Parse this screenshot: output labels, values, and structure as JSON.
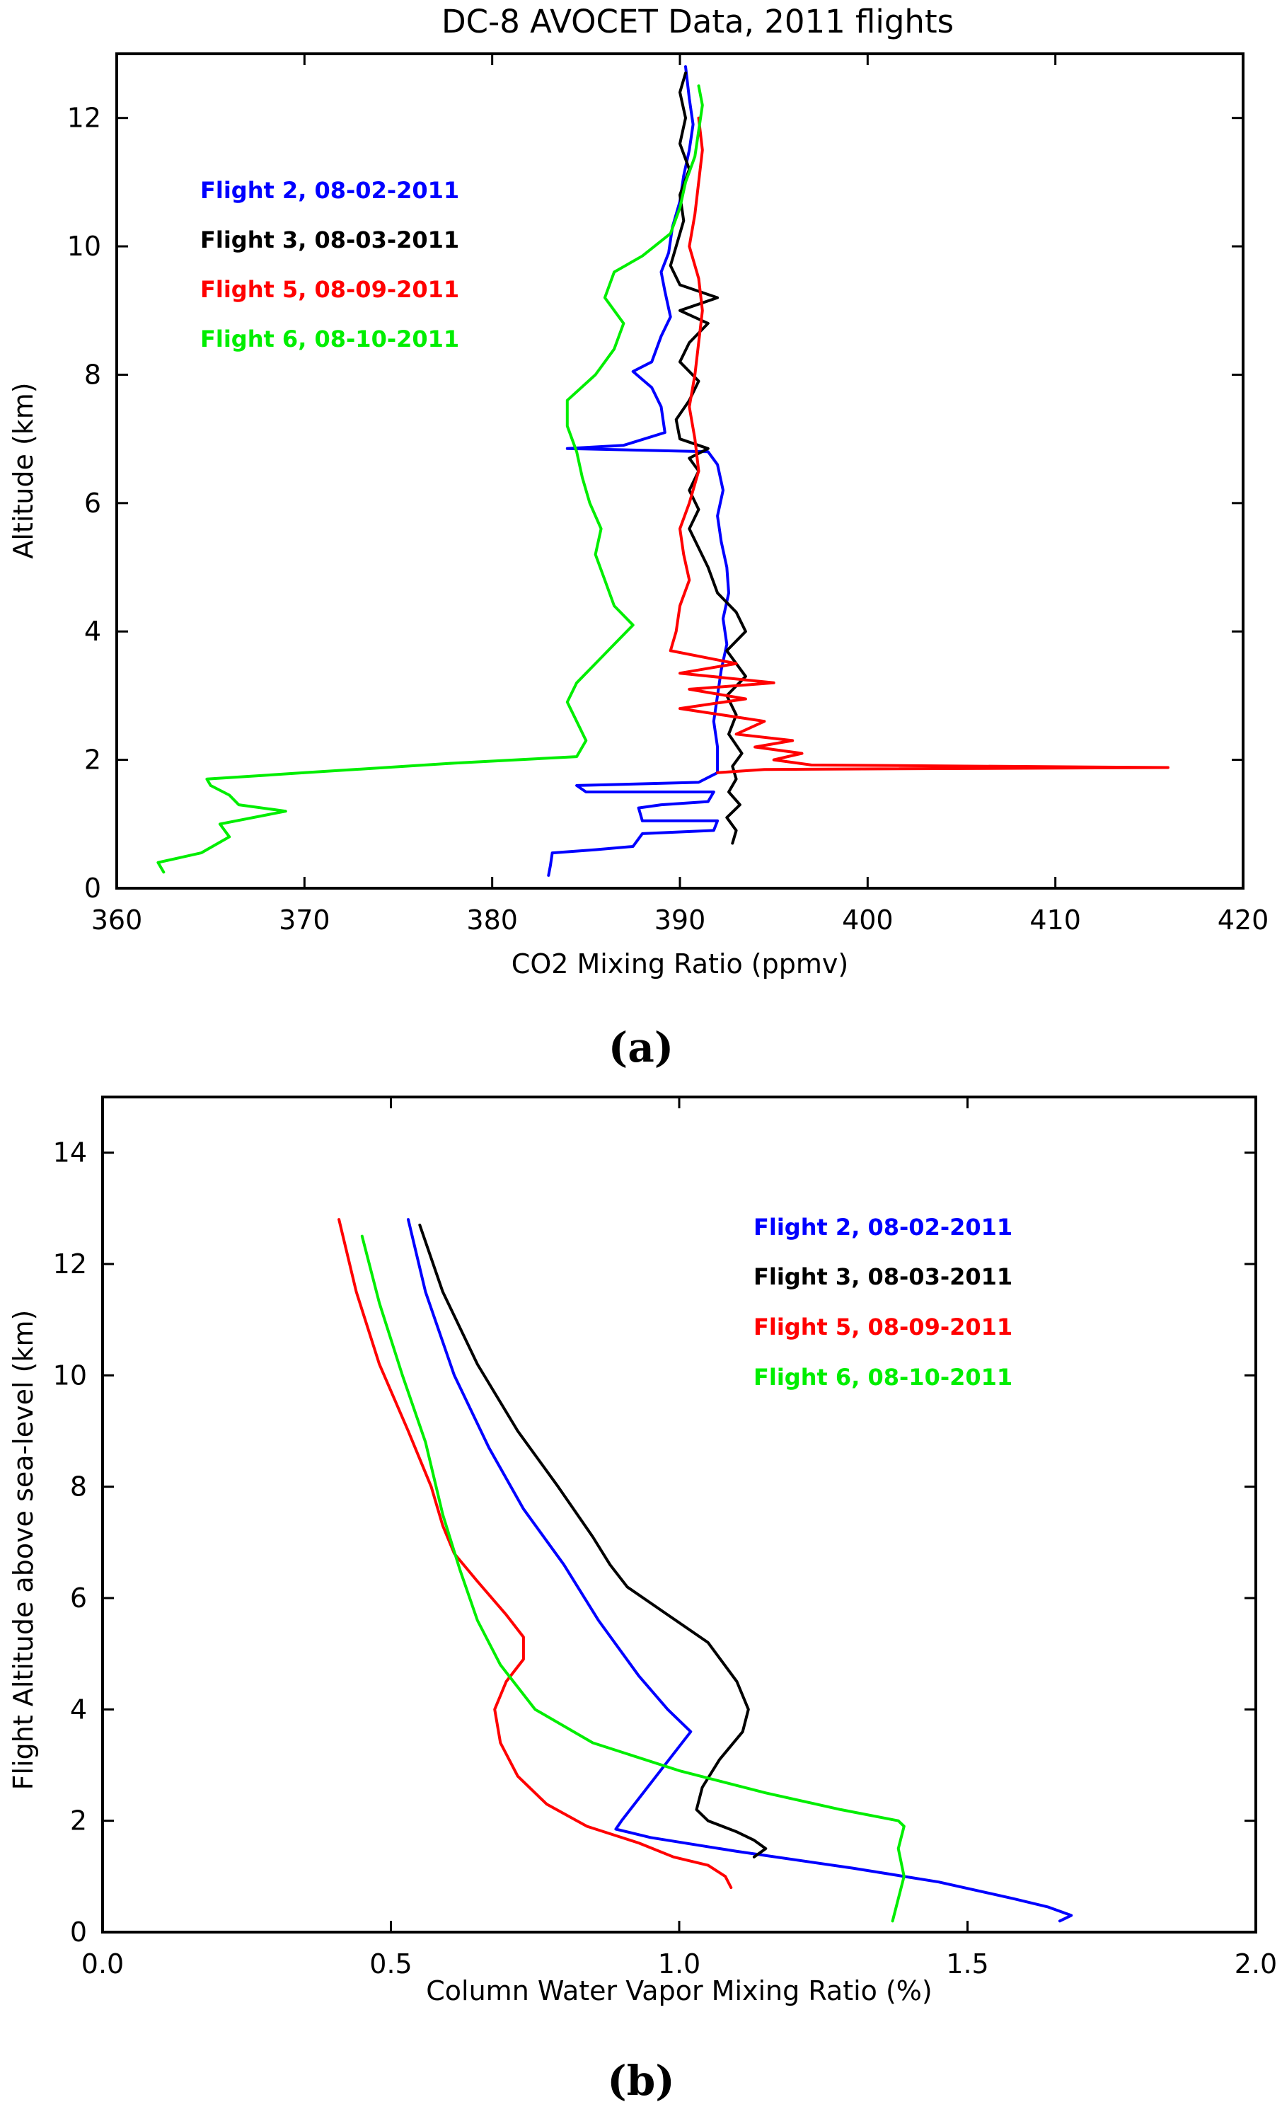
{
  "figure_labels": {
    "a": "(a)",
    "b": "(b)"
  },
  "chart_data": [
    {
      "type": "line",
      "title": "DC-8 AVOCET Data, 2011 flights",
      "xlabel": "CO2 Mixing Ratio (ppmv)",
      "ylabel": "Altitude (km)",
      "xlim": [
        360,
        420
      ],
      "ylim": [
        0,
        13
      ],
      "xticks": [
        360,
        370,
        380,
        390,
        400,
        410,
        420
      ],
      "yticks": [
        0,
        2,
        4,
        6,
        8,
        10,
        12
      ],
      "xticklabels": [
        "360",
        "370",
        "380",
        "390",
        "400",
        "410",
        "420"
      ],
      "yticklabels": [
        "0",
        "2",
        "4",
        "6",
        "8",
        "10",
        "12"
      ],
      "legend": "upper-left",
      "series": [
        {
          "name": "Flight 2, 08-02-2011",
          "color": "#0000ff",
          "points": [
            [
              383.0,
              0.2
            ],
            [
              383.1,
              0.35
            ],
            [
              383.2,
              0.55
            ],
            [
              385.5,
              0.6
            ],
            [
              387.5,
              0.65
            ],
            [
              388.0,
              0.85
            ],
            [
              391.8,
              0.9
            ],
            [
              392.0,
              1.05
            ],
            [
              388.0,
              1.05
            ],
            [
              387.8,
              1.25
            ],
            [
              389.0,
              1.3
            ],
            [
              391.5,
              1.35
            ],
            [
              391.8,
              1.5
            ],
            [
              385.0,
              1.5
            ],
            [
              384.5,
              1.6
            ],
            [
              391.0,
              1.65
            ],
            [
              392.0,
              1.8
            ],
            [
              392.0,
              2.2
            ],
            [
              391.8,
              2.6
            ],
            [
              392.0,
              3.0
            ],
            [
              392.2,
              3.4
            ],
            [
              392.5,
              3.8
            ],
            [
              392.3,
              4.2
            ],
            [
              392.6,
              4.6
            ],
            [
              392.5,
              5.0
            ],
            [
              392.2,
              5.4
            ],
            [
              392.0,
              5.8
            ],
            [
              392.3,
              6.2
            ],
            [
              392.0,
              6.6
            ],
            [
              391.5,
              6.8
            ],
            [
              384.0,
              6.85
            ],
            [
              387.0,
              6.9
            ],
            [
              389.2,
              7.1
            ],
            [
              389.0,
              7.5
            ],
            [
              388.5,
              7.8
            ],
            [
              387.5,
              8.05
            ],
            [
              388.5,
              8.2
            ],
            [
              389.0,
              8.6
            ],
            [
              389.5,
              8.9
            ],
            [
              389.2,
              9.3
            ],
            [
              389.0,
              9.6
            ],
            [
              389.4,
              9.9
            ],
            [
              389.6,
              10.3
            ],
            [
              390.0,
              10.7
            ],
            [
              390.2,
              11.1
            ],
            [
              390.5,
              11.5
            ],
            [
              390.7,
              11.9
            ],
            [
              390.5,
              12.3
            ],
            [
              390.3,
              12.8
            ]
          ]
        },
        {
          "name": "Flight 3, 08-03-2011",
          "color": "#000000",
          "points": [
            [
              392.8,
              0.7
            ],
            [
              393.0,
              0.9
            ],
            [
              392.5,
              1.1
            ],
            [
              393.2,
              1.3
            ],
            [
              392.6,
              1.5
            ],
            [
              393.0,
              1.7
            ],
            [
              392.8,
              1.9
            ],
            [
              393.3,
              2.1
            ],
            [
              392.6,
              2.4
            ],
            [
              393.0,
              2.7
            ],
            [
              392.5,
              3.0
            ],
            [
              393.5,
              3.3
            ],
            [
              392.5,
              3.7
            ],
            [
              393.5,
              4.0
            ],
            [
              393.0,
              4.3
            ],
            [
              392.0,
              4.6
            ],
            [
              391.5,
              5.0
            ],
            [
              391.0,
              5.3
            ],
            [
              390.5,
              5.6
            ],
            [
              391.0,
              5.9
            ],
            [
              390.5,
              6.2
            ],
            [
              391.0,
              6.5
            ],
            [
              390.5,
              6.7
            ],
            [
              391.5,
              6.85
            ],
            [
              390.0,
              7.0
            ],
            [
              389.8,
              7.3
            ],
            [
              390.5,
              7.6
            ],
            [
              391.0,
              7.9
            ],
            [
              390.0,
              8.2
            ],
            [
              390.5,
              8.5
            ],
            [
              391.5,
              8.8
            ],
            [
              390.0,
              9.0
            ],
            [
              392.0,
              9.2
            ],
            [
              390.0,
              9.4
            ],
            [
              389.5,
              9.7
            ],
            [
              389.8,
              10.0
            ],
            [
              390.2,
              10.4
            ],
            [
              390.0,
              10.8
            ],
            [
              390.5,
              11.2
            ],
            [
              390.0,
              11.6
            ],
            [
              390.3,
              12.0
            ],
            [
              390.0,
              12.4
            ],
            [
              390.3,
              12.7
            ]
          ]
        },
        {
          "name": "Flight 5, 08-09-2011",
          "color": "#ff0000",
          "points": [
            [
              392.0,
              1.8
            ],
            [
              394.5,
              1.85
            ],
            [
              416.0,
              1.88
            ],
            [
              397.0,
              1.92
            ],
            [
              395.0,
              2.0
            ],
            [
              396.5,
              2.1
            ],
            [
              394.0,
              2.2
            ],
            [
              396.0,
              2.3
            ],
            [
              393.0,
              2.4
            ],
            [
              394.5,
              2.6
            ],
            [
              390.0,
              2.8
            ],
            [
              393.5,
              2.95
            ],
            [
              390.5,
              3.1
            ],
            [
              395.0,
              3.2
            ],
            [
              390.0,
              3.35
            ],
            [
              393.0,
              3.5
            ],
            [
              389.5,
              3.7
            ],
            [
              389.8,
              4.0
            ],
            [
              390.0,
              4.4
            ],
            [
              390.5,
              4.8
            ],
            [
              390.2,
              5.2
            ],
            [
              390.0,
              5.6
            ],
            [
              390.5,
              6.0
            ],
            [
              391.0,
              6.5
            ],
            [
              390.8,
              7.0
            ],
            [
              390.5,
              7.5
            ],
            [
              390.8,
              8.0
            ],
            [
              391.0,
              8.5
            ],
            [
              391.2,
              9.0
            ],
            [
              391.0,
              9.5
            ],
            [
              390.5,
              10.0
            ],
            [
              390.8,
              10.5
            ],
            [
              391.0,
              11.0
            ],
            [
              391.2,
              11.5
            ],
            [
              391.0,
              12.0
            ]
          ]
        },
        {
          "name": "Flight 6, 08-10-2011",
          "color": "#00ee00",
          "points": [
            [
              362.5,
              0.25
            ],
            [
              362.2,
              0.4
            ],
            [
              364.5,
              0.55
            ],
            [
              366.0,
              0.8
            ],
            [
              365.5,
              1.0
            ],
            [
              369.0,
              1.2
            ],
            [
              366.5,
              1.3
            ],
            [
              366.0,
              1.45
            ],
            [
              365.0,
              1.6
            ],
            [
              364.8,
              1.7
            ],
            [
              370.0,
              1.8
            ],
            [
              378.0,
              1.95
            ],
            [
              384.5,
              2.05
            ],
            [
              385.0,
              2.3
            ],
            [
              384.5,
              2.6
            ],
            [
              384.0,
              2.9
            ],
            [
              384.5,
              3.2
            ],
            [
              385.5,
              3.5
            ],
            [
              386.5,
              3.8
            ],
            [
              387.5,
              4.1
            ],
            [
              386.5,
              4.4
            ],
            [
              386.0,
              4.8
            ],
            [
              385.5,
              5.2
            ],
            [
              385.8,
              5.6
            ],
            [
              385.2,
              6.0
            ],
            [
              384.8,
              6.4
            ],
            [
              384.5,
              6.8
            ],
            [
              384.0,
              7.2
            ],
            [
              384.0,
              7.6
            ],
            [
              385.5,
              8.0
            ],
            [
              386.5,
              8.4
            ],
            [
              387.0,
              8.8
            ],
            [
              386.0,
              9.2
            ],
            [
              386.5,
              9.6
            ],
            [
              388.0,
              9.85
            ],
            [
              389.5,
              10.2
            ],
            [
              390.0,
              10.6
            ],
            [
              390.3,
              11.0
            ],
            [
              390.8,
              11.4
            ],
            [
              391.0,
              11.8
            ],
            [
              391.2,
              12.2
            ],
            [
              391.0,
              12.5
            ]
          ]
        }
      ]
    },
    {
      "type": "line",
      "title": "",
      "xlabel": "Column Water Vapor Mixing Ratio (%)",
      "ylabel": "Flight Altitude above sea-level (km)",
      "xlim": [
        0.0,
        2.0
      ],
      "ylim": [
        0,
        15
      ],
      "xticks": [
        0.0,
        0.5,
        1.0,
        1.5,
        2.0
      ],
      "yticks": [
        0,
        2,
        4,
        6,
        8,
        10,
        12,
        14
      ],
      "xticklabels": [
        "0.0",
        "0.5",
        "1.0",
        "1.5",
        "2.0"
      ],
      "yticklabels": [
        "0",
        "2",
        "4",
        "6",
        "8",
        "10",
        "12",
        "14"
      ],
      "legend": "upper-right",
      "series": [
        {
          "name": "Flight 2, 08-02-2011",
          "color": "#0000ff",
          "points": [
            [
              0.53,
              12.8
            ],
            [
              0.56,
              11.5
            ],
            [
              0.61,
              10.0
            ],
            [
              0.67,
              8.7
            ],
            [
              0.73,
              7.6
            ],
            [
              0.8,
              6.6
            ],
            [
              0.86,
              5.6
            ],
            [
              0.93,
              4.6
            ],
            [
              0.98,
              4.0
            ],
            [
              1.02,
              3.6
            ],
            [
              0.96,
              2.8
            ],
            [
              0.9,
              2.0
            ],
            [
              0.89,
              1.85
            ],
            [
              0.95,
              1.7
            ],
            [
              1.1,
              1.45
            ],
            [
              1.3,
              1.15
            ],
            [
              1.45,
              0.9
            ],
            [
              1.58,
              0.6
            ],
            [
              1.64,
              0.45
            ],
            [
              1.68,
              0.3
            ],
            [
              1.66,
              0.2
            ]
          ]
        },
        {
          "name": "Flight 3, 08-03-2011",
          "color": "#000000",
          "points": [
            [
              0.55,
              12.7
            ],
            [
              0.59,
              11.5
            ],
            [
              0.65,
              10.2
            ],
            [
              0.72,
              9.0
            ],
            [
              0.79,
              8.0
            ],
            [
              0.85,
              7.1
            ],
            [
              0.88,
              6.6
            ],
            [
              0.91,
              6.2
            ],
            [
              0.98,
              5.7
            ],
            [
              1.05,
              5.2
            ],
            [
              1.1,
              4.5
            ],
            [
              1.12,
              4.0
            ],
            [
              1.11,
              3.6
            ],
            [
              1.07,
              3.1
            ],
            [
              1.04,
              2.6
            ],
            [
              1.03,
              2.2
            ],
            [
              1.05,
              2.0
            ],
            [
              1.1,
              1.8
            ],
            [
              1.13,
              1.65
            ],
            [
              1.15,
              1.5
            ],
            [
              1.13,
              1.35
            ]
          ]
        },
        {
          "name": "Flight 5, 08-09-2011",
          "color": "#ff0000",
          "points": [
            [
              0.41,
              12.8
            ],
            [
              0.44,
              11.5
            ],
            [
              0.48,
              10.2
            ],
            [
              0.53,
              9.0
            ],
            [
              0.57,
              8.0
            ],
            [
              0.59,
              7.3
            ],
            [
              0.61,
              6.8
            ],
            [
              0.65,
              6.3
            ],
            [
              0.7,
              5.7
            ],
            [
              0.73,
              5.3
            ],
            [
              0.73,
              4.9
            ],
            [
              0.7,
              4.5
            ],
            [
              0.68,
              4.0
            ],
            [
              0.69,
              3.4
            ],
            [
              0.72,
              2.8
            ],
            [
              0.77,
              2.3
            ],
            [
              0.84,
              1.9
            ],
            [
              0.93,
              1.6
            ],
            [
              0.99,
              1.35
            ],
            [
              1.05,
              1.2
            ],
            [
              1.08,
              1.0
            ],
            [
              1.09,
              0.8
            ]
          ]
        },
        {
          "name": "Flight 6, 08-10-2011",
          "color": "#00ee00",
          "points": [
            [
              0.45,
              12.5
            ],
            [
              0.48,
              11.3
            ],
            [
              0.52,
              10.0
            ],
            [
              0.56,
              8.8
            ],
            [
              0.59,
              7.5
            ],
            [
              0.62,
              6.5
            ],
            [
              0.65,
              5.6
            ],
            [
              0.69,
              4.8
            ],
            [
              0.75,
              4.0
            ],
            [
              0.85,
              3.4
            ],
            [
              1.0,
              2.9
            ],
            [
              1.15,
              2.5
            ],
            [
              1.28,
              2.2
            ],
            [
              1.38,
              2.0
            ],
            [
              1.39,
              1.9
            ],
            [
              1.38,
              1.5
            ],
            [
              1.39,
              1.0
            ],
            [
              1.38,
              0.6
            ],
            [
              1.37,
              0.2
            ]
          ]
        }
      ]
    }
  ]
}
